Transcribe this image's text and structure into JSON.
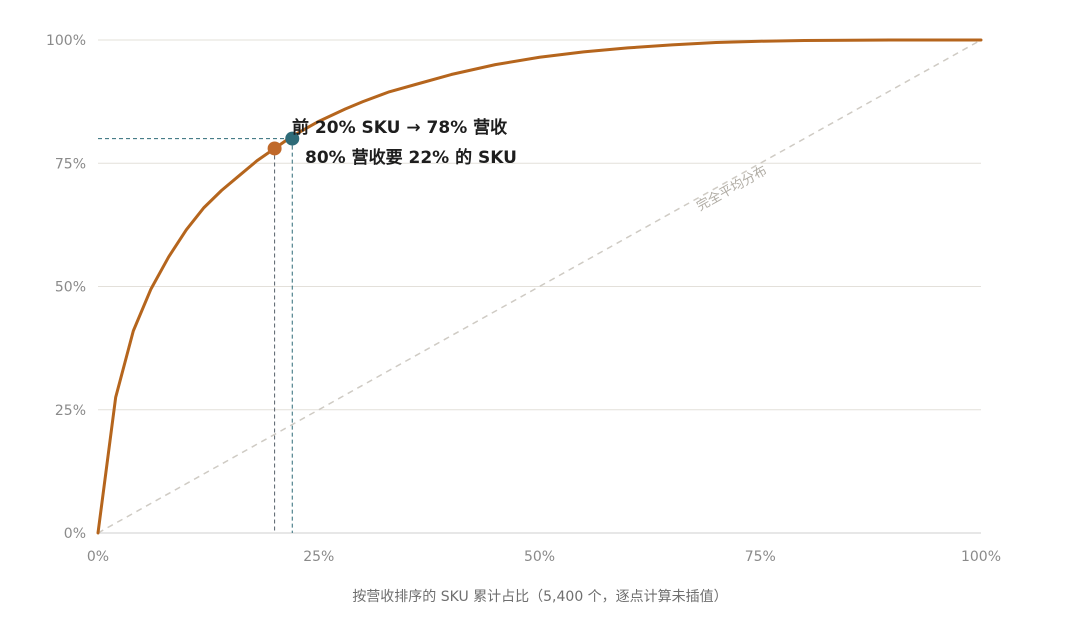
{
  "chart_data": {
    "type": "line",
    "title": "",
    "xlabel": "按营收排序的 SKU 累计占比（5,400 个，逐点计算未插值）",
    "ylabel": "",
    "xlim": [
      0,
      100
    ],
    "ylim": [
      0,
      100
    ],
    "x_ticks": [
      "0%",
      "25%",
      "50%",
      "75%",
      "100%"
    ],
    "y_ticks": [
      "0%",
      "25%",
      "50%",
      "75%",
      "100%"
    ],
    "grid": "horizontal",
    "series": [
      {
        "name": "",
        "color": "#b5651d",
        "x": [
          0,
          2,
          4,
          6,
          8,
          10,
          12,
          14,
          16,
          18,
          20,
          22,
          25,
          28,
          30,
          33,
          36,
          40,
          45,
          50,
          55,
          60,
          65,
          70,
          75,
          80,
          85,
          90,
          95,
          100
        ],
        "y": [
          0,
          27.5,
          41,
          49.5,
          56,
          61.5,
          66,
          69.5,
          72.5,
          75.5,
          78,
          80.5,
          83.5,
          86,
          87.5,
          89.5,
          91,
          93,
          95,
          96.5,
          97.6,
          98.4,
          99,
          99.5,
          99.75,
          99.9,
          99.95,
          100,
          100,
          100
        ]
      }
    ],
    "reference_line": {
      "label": "完全平均分布",
      "from": [
        0,
        0
      ],
      "to": [
        100,
        100
      ],
      "color": "#cfcbc4"
    },
    "points": [
      {
        "x": 20,
        "y": 78,
        "color": "#c0692a"
      },
      {
        "x": 22,
        "y": 80,
        "color": "#2e6b78"
      }
    ],
    "annotations": [
      "前 20% SKU → 78% 营收",
      "80% 营收要 22% 的 SKU"
    ]
  }
}
